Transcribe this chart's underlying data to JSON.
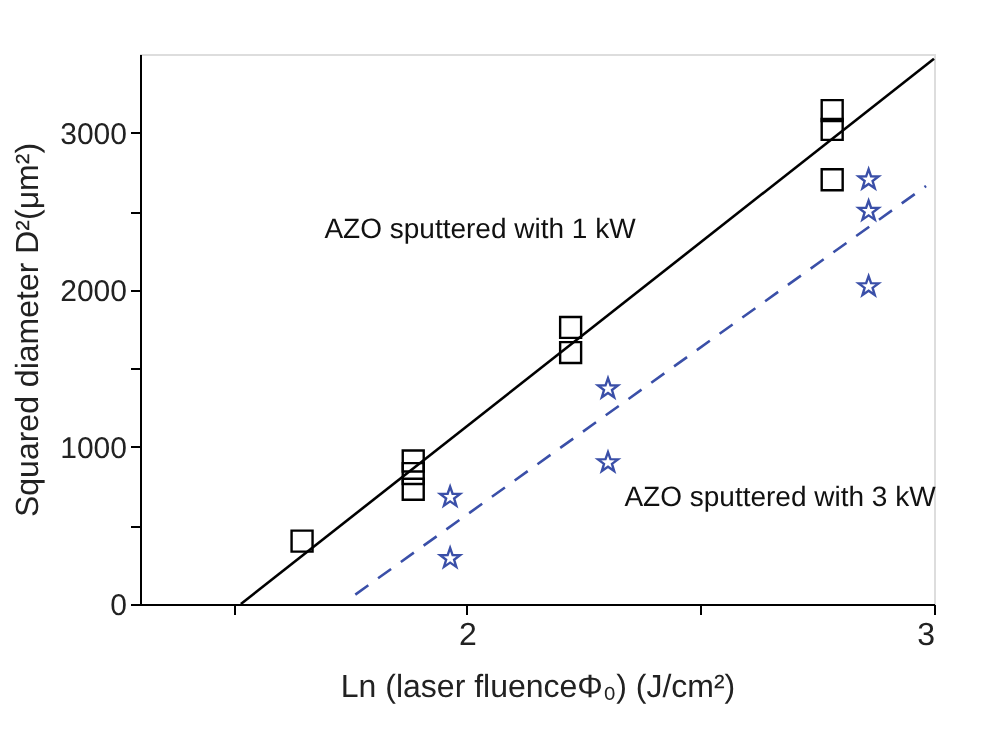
{
  "chart_data": {
    "type": "scatter",
    "xlabel": "Ln (laser fluenceΦ₀) (J/cm²)",
    "ylabel": "Squared diameter D²(μm²)",
    "xlim": [
      1.3,
      3.0
    ],
    "ylim": [
      0,
      3500
    ],
    "xticks": [
      {
        "value": 1.5,
        "label": null
      },
      2,
      {
        "value": 2.5,
        "label": null
      },
      3
    ],
    "yticks": [
      0,
      {
        "value": 500,
        "label": null
      },
      1000,
      {
        "value": 1500,
        "label": null
      },
      2000,
      {
        "value": 2500,
        "label": null
      },
      3000
    ],
    "grid": false,
    "series": [
      {
        "marker": "square",
        "color": "#000000",
        "x": [
          1.647,
          1.885,
          1.885,
          1.885,
          2.222,
          2.222,
          2.782,
          2.782,
          2.782
        ],
        "values": [
          400,
          910,
          830,
          730,
          1760,
          1600,
          3140,
          3020,
          2700
        ]
      },
      {
        "marker": "star",
        "color": "#3a4fa8",
        "x": [
          1.964,
          1.964,
          2.302,
          2.302,
          2.86,
          2.86,
          2.86
        ],
        "values": [
          680,
          290,
          1370,
          900,
          2700,
          2500,
          2020
        ]
      },
      {
        "type": "line",
        "line_style": "solid",
        "color": "#000000",
        "x": [
          1.516,
          3.0
        ],
        "values": [
          0,
          3470
        ]
      },
      {
        "type": "line",
        "line_style": "dashed",
        "color": "#3a4fa8",
        "x": [
          1.761,
          2.983
        ],
        "values": [
          60,
          2660
        ]
      }
    ],
    "annotations": [
      "AZO sputtered with 1 kW",
      "AZO sputtered with 3 kW"
    ]
  }
}
